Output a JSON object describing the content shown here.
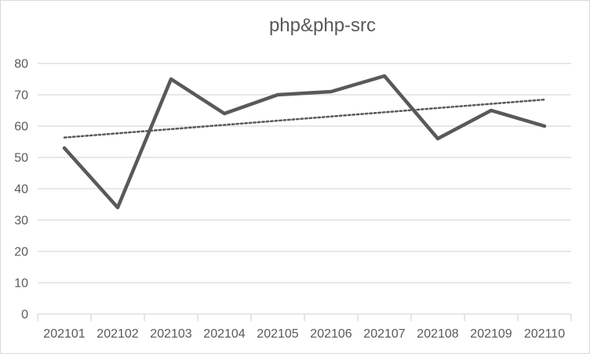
{
  "chart_data": {
    "type": "line",
    "title": "php&php-src",
    "categories": [
      "202101",
      "202102",
      "202103",
      "202104",
      "202105",
      "202106",
      "202107",
      "202108",
      "202109",
      "202110"
    ],
    "series": [
      {
        "values": [
          53,
          34,
          75,
          64,
          70,
          71,
          76,
          56,
          65,
          60
        ],
        "color": "#595959",
        "style": "solid"
      }
    ],
    "trendline": {
      "type": "linear",
      "style": "dotted",
      "color": "#595959"
    },
    "ylim": [
      0,
      80
    ],
    "y_ticks": [
      0,
      10,
      20,
      30,
      40,
      50,
      60,
      70,
      80
    ],
    "grid": true,
    "legend": "none"
  }
}
